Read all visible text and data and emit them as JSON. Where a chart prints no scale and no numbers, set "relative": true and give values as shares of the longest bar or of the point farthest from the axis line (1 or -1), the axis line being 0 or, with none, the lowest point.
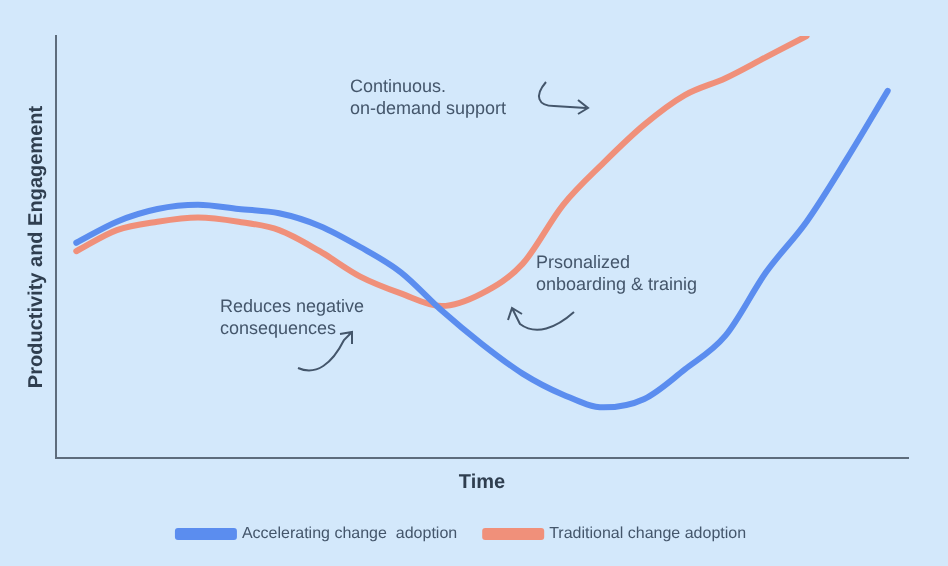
{
  "chart_data": {
    "type": "line",
    "relative": true,
    "xlabel": "Time",
    "ylabel": "Productivity and Engagement",
    "categories": [
      null,
      null,
      null,
      null,
      null,
      null,
      null,
      null,
      null,
      null,
      null,
      null,
      null,
      null,
      null,
      null,
      null,
      null,
      null,
      null,
      null
    ],
    "series": [
      {
        "name": "Accelerating change  adoption",
        "color": "#5b8def",
        "values": [
          0.51,
          0.56,
          0.59,
          0.6,
          0.59,
          0.58,
          0.55,
          0.5,
          0.44,
          0.35,
          0.27,
          0.2,
          0.15,
          0.12,
          0.14,
          0.21,
          0.29,
          0.44,
          0.56,
          0.71,
          0.87
        ]
      },
      {
        "name": "Traditional change adoption",
        "color": "#f0907a",
        "values": [
          0.49,
          0.54,
          0.56,
          0.57,
          0.56,
          0.54,
          0.49,
          0.43,
          0.39,
          0.36,
          0.39,
          0.46,
          0.6,
          0.7,
          0.79,
          0.86,
          0.9,
          0.95,
          1,
          null,
          null
        ]
      }
    ],
    "annotations": [
      "Continuous.\non-demand support",
      "Prsonalized\nonboarding & trainig",
      "Reduces negative\nconsequences"
    ],
    "legend": "bottom",
    "grid": false,
    "marker": "none",
    "line_style": "solid"
  }
}
